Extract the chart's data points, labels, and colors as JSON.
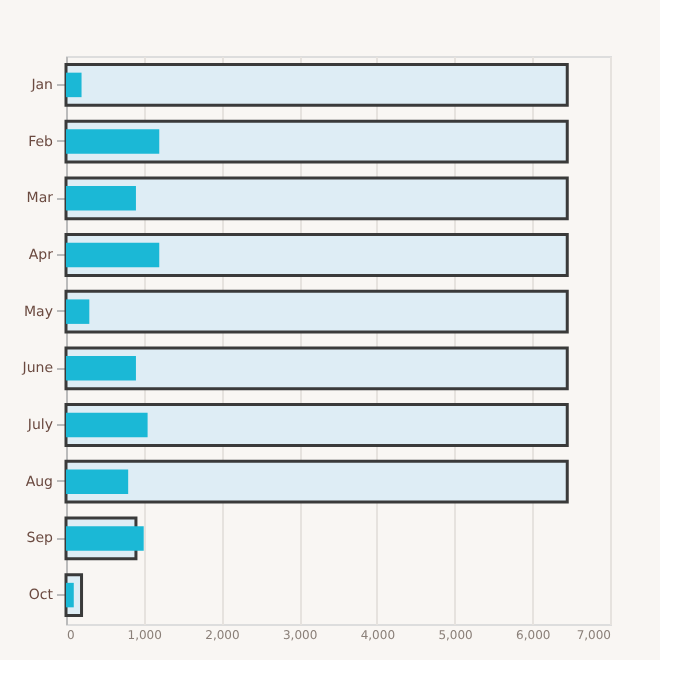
{
  "chart_data": {
    "type": "bar",
    "orientation": "horizontal",
    "categories": [
      "Jan",
      "Feb",
      "Mar",
      "Apr",
      "May",
      "June",
      "July",
      "Aug",
      "Sep",
      "Oct"
    ],
    "series": [
      {
        "color": "#deedf5",
        "values": [
          6450,
          6450,
          6450,
          6450,
          6450,
          6450,
          6450,
          6450,
          900,
          200
        ]
      },
      {
        "color": "#1bb8d6",
        "values": [
          200,
          1200,
          900,
          1200,
          300,
          900,
          1050,
          800,
          1000,
          100
        ]
      }
    ],
    "xlim": [
      0,
      7000
    ],
    "xticks": [
      0,
      {
        "value": 1000,
        "label": "1,000"
      },
      {
        "value": 2000,
        "label": "2,000"
      },
      {
        "value": 3000,
        "label": "3,000"
      },
      {
        "value": 4000,
        "label": "4,000"
      },
      {
        "value": 5000,
        "label": "5,000"
      },
      {
        "value": 6000,
        "label": "6,000"
      },
      {
        "value": 7000,
        "label": "7,000"
      }
    ],
    "grid": "x"
  }
}
